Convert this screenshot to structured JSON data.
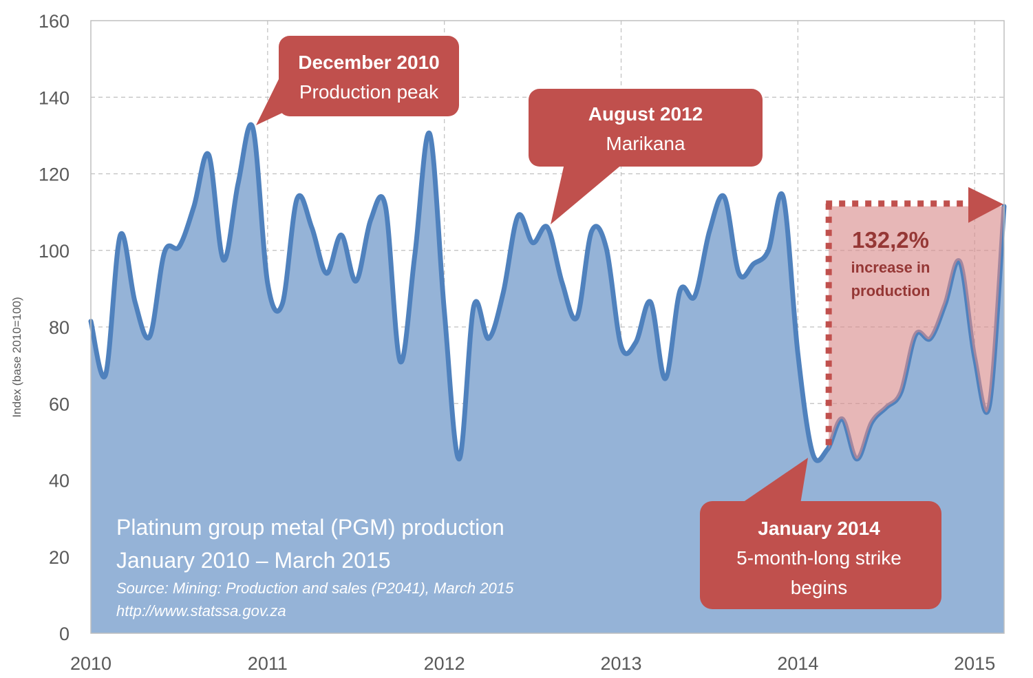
{
  "chart_data": {
    "type": "area",
    "title": "Platinum group metal (PGM) production",
    "subtitle": "January 2010 – March 2015",
    "source": "Source: Mining: Production and sales (P2041), March 2015",
    "url": "http://www.statssa.gov.za",
    "xlabel": "",
    "ylabel": "Index (base 2010=100)",
    "ylim": [
      0,
      160
    ],
    "yticks": [
      0,
      20,
      40,
      60,
      80,
      100,
      120,
      140,
      160
    ],
    "ytick_labels": [
      "0",
      "20",
      "40",
      "60",
      "80",
      "100",
      "120",
      "140",
      "160"
    ],
    "xticks": [
      "2010",
      "2011",
      "2012",
      "2013",
      "2014",
      "2015"
    ],
    "x_start": "January 2010",
    "x_end": "March 2015",
    "grid": true,
    "series": [
      {
        "name": "PGM production index",
        "color": "#4F81BD",
        "fill": "#95B3D7",
        "values": [
          81.5,
          67.5,
          104,
          86.5,
          77.5,
          99.5,
          101,
          111.5,
          125,
          97.5,
          117.5,
          132,
          91.5,
          86,
          113.5,
          106,
          94,
          104,
          92,
          108,
          111.5,
          71,
          99,
          130.5,
          84,
          45.5,
          85.5,
          77,
          89,
          109,
          102,
          106,
          91.5,
          82.5,
          105,
          100.5,
          75,
          76,
          86.5,
          66.5,
          89.5,
          88,
          105,
          114,
          94,
          96.5,
          100,
          114,
          73,
          47,
          48,
          56,
          45.5,
          55,
          59,
          63,
          78,
          77,
          86,
          97,
          72,
          59.5,
          111.5
        ]
      }
    ],
    "annotations": [
      {
        "title": "December 2010",
        "text": "Production peak",
        "month_index": 11,
        "color": "#C0504D"
      },
      {
        "title": "August 2012",
        "text": "Marikana",
        "month_index": 31,
        "color": "#C0504D"
      },
      {
        "title": "January 2014",
        "lines": [
          "5-month-long strike",
          "begins"
        ],
        "month_index": 49,
        "color": "#C0504D"
      }
    ],
    "increase": {
      "value": "132,2%",
      "lines": [
        "increase in",
        "production"
      ],
      "from_month_index": 50,
      "to_month_index": 62,
      "color": "#953735",
      "shade": "#DD9A9B"
    }
  }
}
